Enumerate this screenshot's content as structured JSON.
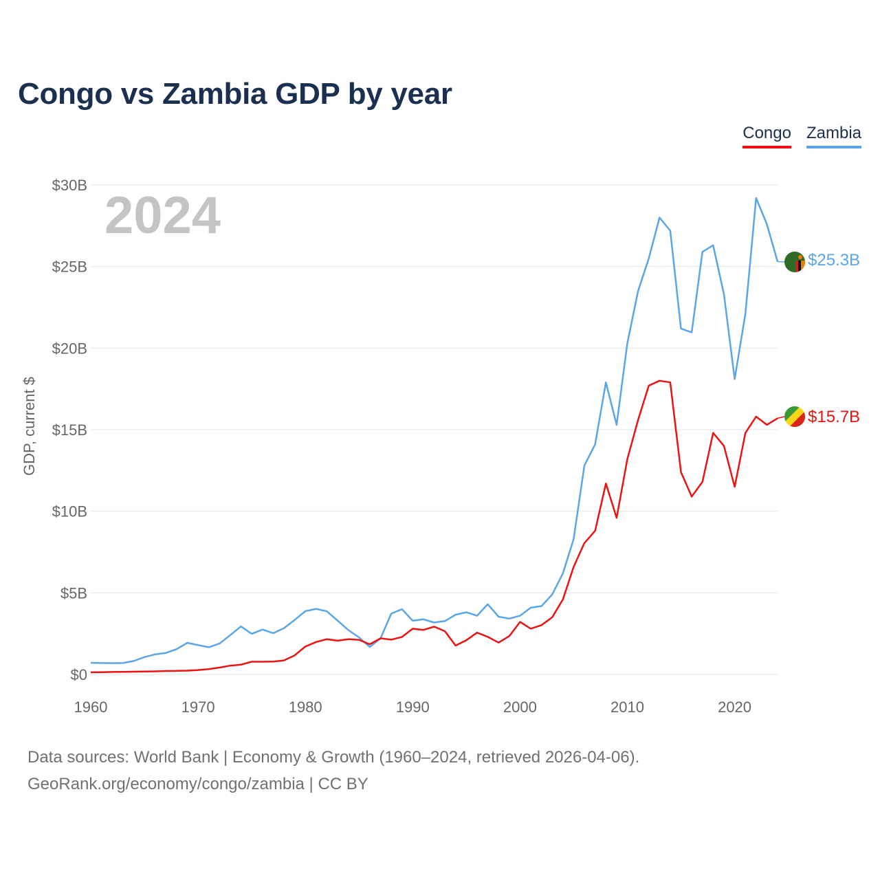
{
  "title": "Congo vs Zambia GDP by year",
  "legend": [
    {
      "label": "Congo",
      "color": "#ee1111"
    },
    {
      "label": "Zambia",
      "color": "#5aa5e6"
    }
  ],
  "source": {
    "line1": "Data sources: World Bank | Economy & Growth (1960–2024, retrieved 2026-04-06).",
    "line2": "GeoRank.org/economy/congo/zambia | CC BY"
  },
  "chart_data": {
    "type": "line",
    "title": "Congo vs Zambia GDP by year",
    "year_label": "2024",
    "ylabel": "GDP, current $",
    "xlabel": "",
    "xlim": [
      1960,
      2024
    ],
    "ylim": [
      0,
      30
    ],
    "x_ticks": [
      1960,
      1970,
      1980,
      1990,
      2000,
      2010,
      2020
    ],
    "y_ticks": [
      0,
      5,
      10,
      15,
      20,
      25,
      30
    ],
    "y_tick_labels": [
      "$0",
      "$5B",
      "$10B",
      "$15B",
      "$20B",
      "$25B",
      "$30B"
    ],
    "grid": true,
    "legend_position": "top-right",
    "x": [
      1960,
      1961,
      1962,
      1963,
      1964,
      1965,
      1966,
      1967,
      1968,
      1969,
      1970,
      1971,
      1972,
      1973,
      1974,
      1975,
      1976,
      1977,
      1978,
      1979,
      1980,
      1981,
      1982,
      1983,
      1984,
      1985,
      1986,
      1987,
      1988,
      1989,
      1990,
      1991,
      1992,
      1993,
      1994,
      1995,
      1996,
      1997,
      1998,
      1999,
      2000,
      2001,
      2002,
      2003,
      2004,
      2005,
      2006,
      2007,
      2008,
      2009,
      2010,
      2011,
      2012,
      2013,
      2014,
      2015,
      2016,
      2017,
      2018,
      2019,
      2020,
      2021,
      2022,
      2023,
      2024
    ],
    "series": [
      {
        "name": "Congo",
        "color": "#ee1111",
        "end_label": "$15.7B",
        "values": [
          0.13,
          0.14,
          0.15,
          0.16,
          0.17,
          0.18,
          0.19,
          0.21,
          0.22,
          0.23,
          0.27,
          0.33,
          0.42,
          0.54,
          0.6,
          0.78,
          0.78,
          0.79,
          0.86,
          1.17,
          1.71,
          1.99,
          2.16,
          2.07,
          2.16,
          2.12,
          1.85,
          2.21,
          2.13,
          2.3,
          2.8,
          2.73,
          2.93,
          2.65,
          1.77,
          2.1,
          2.56,
          2.3,
          1.95,
          2.35,
          3.22,
          2.8,
          3.02,
          3.5,
          4.6,
          6.6,
          8.05,
          8.8,
          11.7,
          9.6,
          13.2,
          15.6,
          17.7,
          18,
          17.9,
          12.4,
          10.9,
          11.8,
          14.8,
          14,
          11.5,
          14.8,
          15.8,
          15.3,
          15.7
        ]
      },
      {
        "name": "Zambia",
        "color": "#5aa5e6",
        "end_label": "$25.3B",
        "values": [
          0.71,
          0.7,
          0.69,
          0.7,
          0.82,
          1.06,
          1.23,
          1.32,
          1.55,
          1.94,
          1.8,
          1.67,
          1.89,
          2.41,
          2.94,
          2.49,
          2.75,
          2.53,
          2.83,
          3.34,
          3.88,
          4.02,
          3.87,
          3.3,
          2.72,
          2.27,
          1.68,
          2.21,
          3.73,
          4.0,
          3.29,
          3.38,
          3.18,
          3.27,
          3.66,
          3.81,
          3.6,
          4.3,
          3.54,
          3.42,
          3.6,
          4.09,
          4.19,
          4.9,
          6.2,
          8.3,
          12.8,
          14.1,
          17.9,
          15.3,
          20.3,
          23.5,
          25.5,
          28.0,
          27.2,
          21.2,
          20.96,
          25.9,
          26.3,
          23.3,
          18.1,
          22.1,
          29.2,
          27.6,
          25.3
        ]
      }
    ]
  }
}
